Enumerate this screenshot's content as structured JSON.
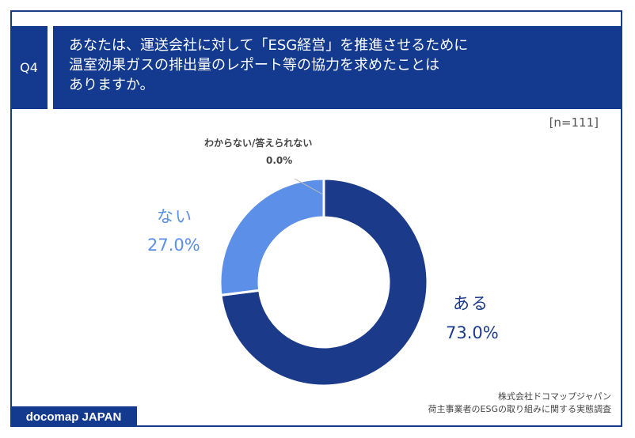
{
  "question": {
    "tag": "Q4",
    "line1": "あなたは、運送会社に対して「ESG経営」を推進させるために",
    "line2": "温室効果ガスの排出量のレポート等の協力を求めたことは",
    "line3": "ありますか。"
  },
  "sample": "[n=111]",
  "source": {
    "line1": "株式会社ドコマップジャパン",
    "line2": "荷主事業者のESGの取り組みに関する実態調査"
  },
  "brand": "docomap JAPAN",
  "chart_data": {
    "type": "pie",
    "donut": true,
    "series": [
      {
        "name": "ある",
        "value": 73.0,
        "label": "73.0%",
        "color": "#1b3a8a"
      },
      {
        "name": "ない",
        "value": 27.0,
        "label": "27.0%",
        "color": "#5b8fe8"
      },
      {
        "name": "わからない/答えられない",
        "value": 0.0,
        "label": "0.0%",
        "color": "#9bb6ea"
      }
    ]
  }
}
